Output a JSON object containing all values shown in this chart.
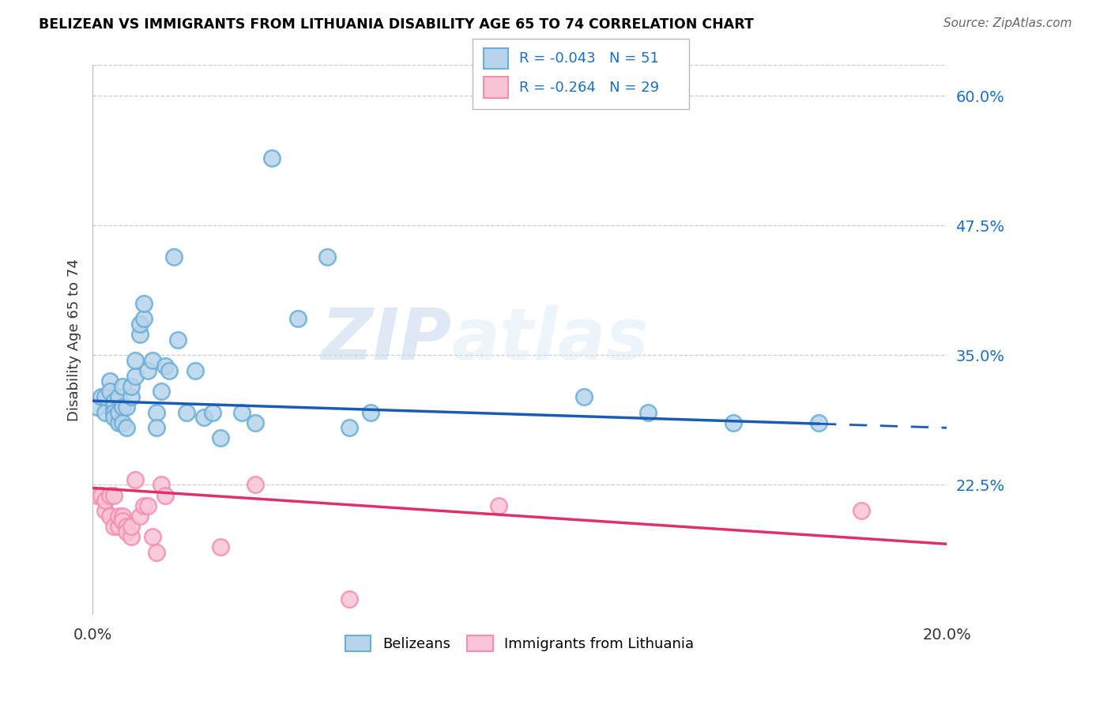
{
  "title": "BELIZEAN VS IMMIGRANTS FROM LITHUANIA DISABILITY AGE 65 TO 74 CORRELATION CHART",
  "source": "Source: ZipAtlas.com",
  "ylabel": "Disability Age 65 to 74",
  "xlim": [
    0.0,
    0.2
  ],
  "ylim": [
    0.1,
    0.63
  ],
  "yticks_right": [
    0.225,
    0.35,
    0.475,
    0.6
  ],
  "ytick_right_labels": [
    "22.5%",
    "35.0%",
    "47.5%",
    "60.0%"
  ],
  "watermark_zip": "ZIP",
  "watermark_atlas": "atlas",
  "belizean_R": -0.043,
  "belizean_N": 51,
  "lithuania_R": -0.264,
  "lithuania_N": 29,
  "belizean_color": "#6baed6",
  "belizean_fill": "#b8d4ea",
  "lithuania_color": "#f48fb1",
  "lithuania_fill": "#f9c4d5",
  "blue_line_color": "#1a5cb5",
  "pink_line_color": "#e0306a",
  "blue_line_solid_end": 0.17,
  "belizean_x": [
    0.001,
    0.002,
    0.003,
    0.003,
    0.004,
    0.004,
    0.005,
    0.005,
    0.005,
    0.005,
    0.006,
    0.006,
    0.006,
    0.007,
    0.007,
    0.007,
    0.008,
    0.008,
    0.009,
    0.009,
    0.01,
    0.01,
    0.011,
    0.011,
    0.012,
    0.012,
    0.013,
    0.014,
    0.015,
    0.015,
    0.016,
    0.017,
    0.018,
    0.019,
    0.02,
    0.022,
    0.024,
    0.026,
    0.028,
    0.03,
    0.035,
    0.038,
    0.042,
    0.048,
    0.055,
    0.06,
    0.065,
    0.115,
    0.13,
    0.15,
    0.17
  ],
  "belizean_y": [
    0.3,
    0.31,
    0.295,
    0.31,
    0.325,
    0.315,
    0.3,
    0.305,
    0.295,
    0.29,
    0.285,
    0.31,
    0.295,
    0.3,
    0.32,
    0.285,
    0.3,
    0.28,
    0.31,
    0.32,
    0.33,
    0.345,
    0.37,
    0.38,
    0.385,
    0.4,
    0.335,
    0.345,
    0.295,
    0.28,
    0.315,
    0.34,
    0.335,
    0.445,
    0.365,
    0.295,
    0.335,
    0.29,
    0.295,
    0.27,
    0.295,
    0.285,
    0.54,
    0.385,
    0.445,
    0.28,
    0.295,
    0.31,
    0.295,
    0.285,
    0.285
  ],
  "lithuania_x": [
    0.001,
    0.002,
    0.003,
    0.003,
    0.004,
    0.004,
    0.005,
    0.005,
    0.006,
    0.006,
    0.007,
    0.007,
    0.008,
    0.008,
    0.009,
    0.009,
    0.01,
    0.011,
    0.012,
    0.013,
    0.014,
    0.015,
    0.016,
    0.017,
    0.03,
    0.038,
    0.06,
    0.095,
    0.18
  ],
  "lithuania_y": [
    0.215,
    0.215,
    0.2,
    0.21,
    0.195,
    0.215,
    0.185,
    0.215,
    0.185,
    0.195,
    0.195,
    0.19,
    0.185,
    0.18,
    0.175,
    0.185,
    0.23,
    0.195,
    0.205,
    0.205,
    0.175,
    0.16,
    0.225,
    0.215,
    0.165,
    0.225,
    0.115,
    0.205,
    0.2
  ],
  "blue_trend_x0": 0.0,
  "blue_trend_y0": 0.306,
  "blue_trend_x1": 0.2,
  "blue_trend_y1": 0.28,
  "pink_trend_x0": 0.0,
  "pink_trend_y0": 0.222,
  "pink_trend_x1": 0.2,
  "pink_trend_y1": 0.168
}
